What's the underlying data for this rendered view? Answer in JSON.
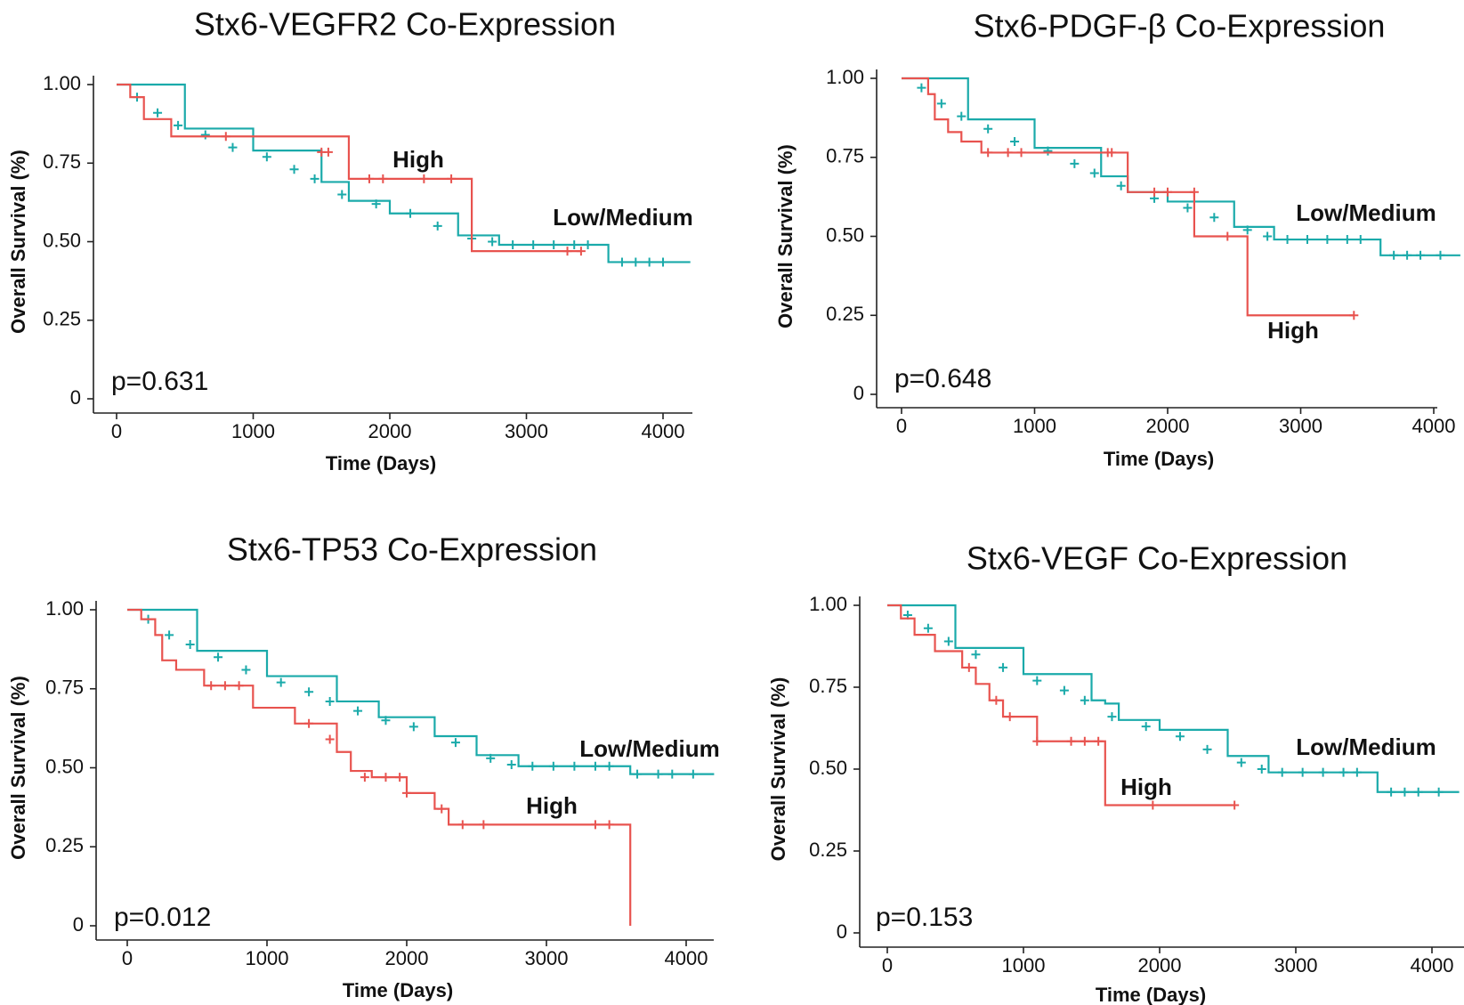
{
  "colors": {
    "high": "#e8534f",
    "low_medium": "#1aaaaa",
    "axis": "#222222"
  },
  "chart_data": [
    {
      "type": "line",
      "title": "Stx6-VEGFR2 Co-Expression",
      "xlabel": "Time (Days)",
      "ylabel": "Overall Survival (%)",
      "xlim": [
        0,
        4200
      ],
      "ylim": [
        0,
        1
      ],
      "xticks": [
        "0",
        "1000",
        "2000",
        "3000",
        "4000"
      ],
      "yticks": [
        "0",
        "0.25",
        "0.50",
        "0.75",
        "1.00"
      ],
      "p_value": "p=0.631",
      "series": [
        {
          "name": "High",
          "color_key": "high",
          "x": [
            0,
            100,
            200,
            400,
            1700,
            2600,
            3400
          ],
          "y": [
            1.0,
            0.96,
            0.89,
            0.835,
            0.7,
            0.47,
            0.47
          ],
          "censor_x": [
            800,
            1500,
            1550,
            1850,
            1950,
            2250,
            2450,
            3300,
            3400
          ],
          "censor_y": [
            0.835,
            0.785,
            0.785,
            0.7,
            0.7,
            0.7,
            0.7,
            0.47,
            0.47
          ]
        },
        {
          "name": "Low/Medium",
          "color_key": "low_medium",
          "x": [
            0,
            500,
            1000,
            1500,
            1700,
            2000,
            2500,
            2800,
            3500,
            3600,
            4200
          ],
          "y": [
            1.0,
            0.86,
            0.79,
            0.69,
            0.63,
            0.59,
            0.52,
            0.49,
            0.49,
            0.435,
            0.435
          ],
          "censor_x": [
            150,
            300,
            450,
            650,
            850,
            1100,
            1300,
            1450,
            1650,
            1900,
            2150,
            2350,
            2600,
            2750,
            2900,
            3050,
            3200,
            3350,
            3450,
            3700,
            3800,
            3900,
            4000
          ],
          "censor_y": [
            0.96,
            0.91,
            0.87,
            0.84,
            0.8,
            0.77,
            0.73,
            0.7,
            0.65,
            0.62,
            0.59,
            0.55,
            0.51,
            0.5,
            0.49,
            0.49,
            0.49,
            0.49,
            0.49,
            0.435,
            0.435,
            0.435,
            0.435
          ]
        }
      ]
    },
    {
      "type": "line",
      "title": "Stx6-PDGF-β Co-Expression",
      "xlabel": "Time (Days)",
      "ylabel": "Overall Survival (%)",
      "xlim": [
        0,
        4200
      ],
      "ylim": [
        0,
        1
      ],
      "xticks": [
        "0",
        "1000",
        "2000",
        "3000",
        "4000"
      ],
      "yticks": [
        "0",
        "0.25",
        "0.50",
        "0.75",
        "1.00"
      ],
      "p_value": "p=0.648",
      "series": [
        {
          "name": "High",
          "color_key": "high",
          "x": [
            0,
            200,
            250,
            350,
            450,
            600,
            1600,
            1700,
            2200,
            2600,
            3400
          ],
          "y": [
            1.0,
            0.95,
            0.87,
            0.83,
            0.8,
            0.765,
            0.765,
            0.64,
            0.5,
            0.25,
            0.25
          ],
          "censor_x": [
            650,
            800,
            900,
            1550,
            1580,
            1900,
            2000,
            2200,
            2450,
            3400
          ],
          "censor_y": [
            0.765,
            0.765,
            0.765,
            0.765,
            0.765,
            0.64,
            0.64,
            0.64,
            0.5,
            0.25
          ]
        },
        {
          "name": "Low/Medium",
          "color_key": "low_medium",
          "x": [
            0,
            500,
            1000,
            1500,
            1700,
            2000,
            2500,
            2800,
            3500,
            3600,
            4200
          ],
          "y": [
            1.0,
            0.87,
            0.78,
            0.69,
            0.64,
            0.61,
            0.53,
            0.49,
            0.49,
            0.44,
            0.44
          ],
          "censor_x": [
            150,
            300,
            450,
            650,
            850,
            1100,
            1300,
            1450,
            1650,
            1900,
            2150,
            2350,
            2600,
            2750,
            2900,
            3050,
            3200,
            3350,
            3450,
            3700,
            3800,
            3900,
            4050
          ],
          "censor_y": [
            0.97,
            0.92,
            0.88,
            0.84,
            0.8,
            0.77,
            0.73,
            0.7,
            0.66,
            0.62,
            0.59,
            0.56,
            0.52,
            0.5,
            0.49,
            0.49,
            0.49,
            0.49,
            0.49,
            0.44,
            0.44,
            0.44,
            0.44
          ]
        }
      ]
    },
    {
      "type": "line",
      "title": "Stx6-TP53 Co-Expression",
      "xlabel": "Time (Days)",
      "ylabel": "Overall Survival (%)",
      "xlim": [
        0,
        4200
      ],
      "ylim": [
        0,
        1
      ],
      "xticks": [
        "0",
        "1000",
        "2000",
        "3000",
        "4000"
      ],
      "yticks": [
        "0",
        "0.25",
        "0.50",
        "0.75",
        "1.00"
      ],
      "p_value": "p=0.012",
      "series": [
        {
          "name": "High",
          "color_key": "high",
          "x": [
            0,
            100,
            200,
            250,
            350,
            550,
            900,
            1200,
            1500,
            1600,
            1750,
            2000,
            2200,
            2300,
            3600,
            3600
          ],
          "y": [
            1.0,
            0.97,
            0.92,
            0.84,
            0.81,
            0.76,
            0.69,
            0.64,
            0.55,
            0.49,
            0.47,
            0.42,
            0.37,
            0.32,
            0.32,
            0.0
          ],
          "censor_x": [
            600,
            700,
            800,
            1300,
            1450,
            1700,
            1850,
            1950,
            2000,
            2250,
            2400,
            2550,
            3350,
            3450
          ],
          "censor_y": [
            0.76,
            0.76,
            0.76,
            0.64,
            0.59,
            0.47,
            0.47,
            0.47,
            0.42,
            0.37,
            0.32,
            0.32,
            0.32,
            0.32
          ]
        },
        {
          "name": "Low/Medium",
          "color_key": "low_medium",
          "x": [
            0,
            500,
            1000,
            1500,
            1800,
            2200,
            2500,
            2800,
            3500,
            3600,
            4200
          ],
          "y": [
            1.0,
            0.87,
            0.79,
            0.71,
            0.66,
            0.6,
            0.54,
            0.505,
            0.505,
            0.48,
            0.48
          ],
          "censor_x": [
            150,
            300,
            450,
            650,
            850,
            1100,
            1300,
            1450,
            1650,
            1850,
            2050,
            2350,
            2600,
            2750,
            2900,
            3050,
            3200,
            3350,
            3450,
            3650,
            3800,
            3900,
            4050
          ],
          "censor_y": [
            0.97,
            0.92,
            0.89,
            0.85,
            0.81,
            0.77,
            0.74,
            0.71,
            0.68,
            0.65,
            0.63,
            0.58,
            0.53,
            0.51,
            0.505,
            0.505,
            0.505,
            0.505,
            0.505,
            0.48,
            0.48,
            0.48,
            0.48
          ]
        }
      ]
    },
    {
      "type": "line",
      "title": "Stx6-VEGF Co-Expression",
      "xlabel": "Time (Days)",
      "ylabel": "Overall Survival (%)",
      "xlim": [
        0,
        4200
      ],
      "ylim": [
        0,
        1
      ],
      "xticks": [
        "0",
        "1000",
        "2000",
        "3000",
        "4000"
      ],
      "yticks": [
        "0",
        "0.25",
        "0.50",
        "0.75",
        "1.00"
      ],
      "p_value": "p=0.153",
      "series": [
        {
          "name": "High",
          "color_key": "high",
          "x": [
            0,
            100,
            200,
            350,
            550,
            650,
            750,
            850,
            1100,
            1600,
            2550
          ],
          "y": [
            1.0,
            0.96,
            0.91,
            0.86,
            0.81,
            0.76,
            0.71,
            0.66,
            0.585,
            0.39,
            0.39
          ],
          "censor_x": [
            600,
            800,
            900,
            1100,
            1350,
            1450,
            1550,
            1950,
            2550
          ],
          "censor_y": [
            0.81,
            0.71,
            0.66,
            0.585,
            0.585,
            0.585,
            0.585,
            0.39,
            0.39
          ]
        },
        {
          "name": "Low/Medium",
          "color_key": "low_medium",
          "x": [
            0,
            500,
            1000,
            1500,
            1600,
            1700,
            2000,
            2500,
            2800,
            3500,
            3600,
            4200
          ],
          "y": [
            1.0,
            0.87,
            0.79,
            0.71,
            0.7,
            0.65,
            0.62,
            0.54,
            0.49,
            0.49,
            0.43,
            0.43
          ],
          "censor_x": [
            150,
            300,
            450,
            650,
            850,
            1100,
            1300,
            1450,
            1650,
            1900,
            2150,
            2350,
            2600,
            2750,
            2900,
            3050,
            3200,
            3350,
            3450,
            3700,
            3800,
            3900,
            4050
          ],
          "censor_y": [
            0.97,
            0.93,
            0.89,
            0.85,
            0.81,
            0.77,
            0.74,
            0.71,
            0.66,
            0.63,
            0.6,
            0.56,
            0.52,
            0.5,
            0.49,
            0.49,
            0.49,
            0.49,
            0.49,
            0.43,
            0.43,
            0.43,
            0.43
          ]
        }
      ]
    }
  ]
}
